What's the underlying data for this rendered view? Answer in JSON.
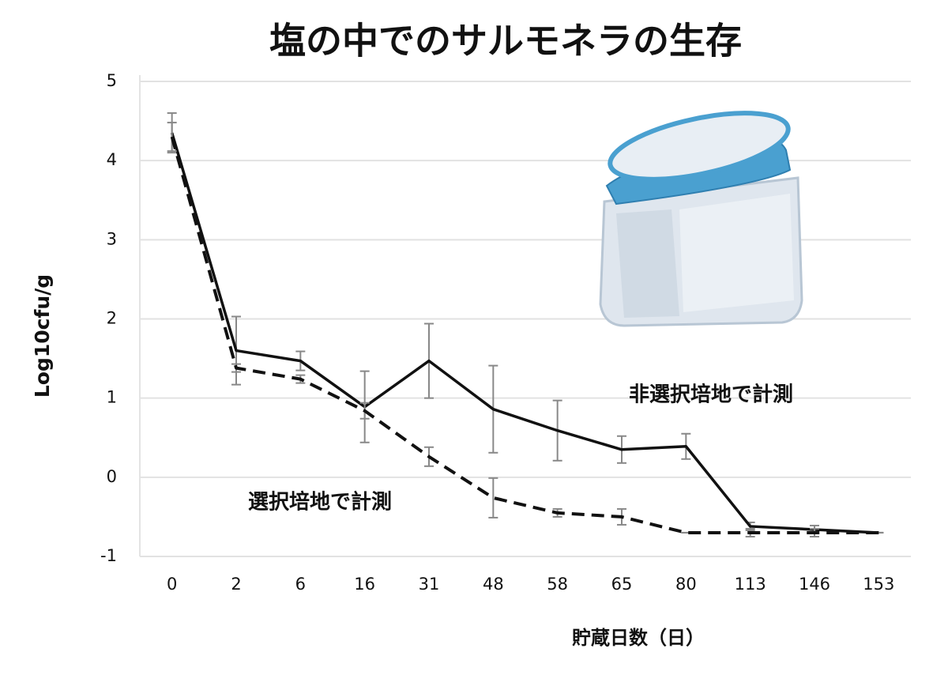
{
  "chart_data": {
    "type": "line",
    "title": "塩の中でのサルモネラの生存",
    "x_label": "貯蔵日数（日）",
    "y_label": "Log10cfu/g",
    "categories": [
      "0",
      "2",
      "6",
      "16",
      "31",
      "48",
      "58",
      "65",
      "80",
      "113",
      "146",
      "153"
    ],
    "series": [
      {
        "name": "非選択培地で計測",
        "color": "#111111",
        "dash": false,
        "values": [
          4.35,
          1.6,
          1.47,
          0.89,
          1.47,
          0.86,
          0.59,
          0.35,
          0.39,
          -0.62,
          -0.66,
          -0.7
        ],
        "errors": [
          0.25,
          0.43,
          0.12,
          0.45,
          0.47,
          0.55,
          0.38,
          0.17,
          0.16,
          0.05,
          0.05,
          0
        ]
      },
      {
        "name": "選択培地で計測",
        "color": "#111111",
        "dash": true,
        "values": [
          4.3,
          1.38,
          1.24,
          0.84,
          0.26,
          -0.26,
          -0.45,
          -0.5,
          -0.7,
          -0.7,
          -0.7,
          -0.7
        ],
        "errors": [
          0.18,
          0.05,
          0.05,
          0.1,
          0.12,
          0.25,
          0.05,
          0.1,
          0,
          0.05,
          0.05,
          0
        ]
      }
    ],
    "ylim": [
      -1,
      5
    ],
    "yticks": [
      -1,
      0,
      1,
      2,
      3,
      4,
      5
    ],
    "grid": true
  }
}
